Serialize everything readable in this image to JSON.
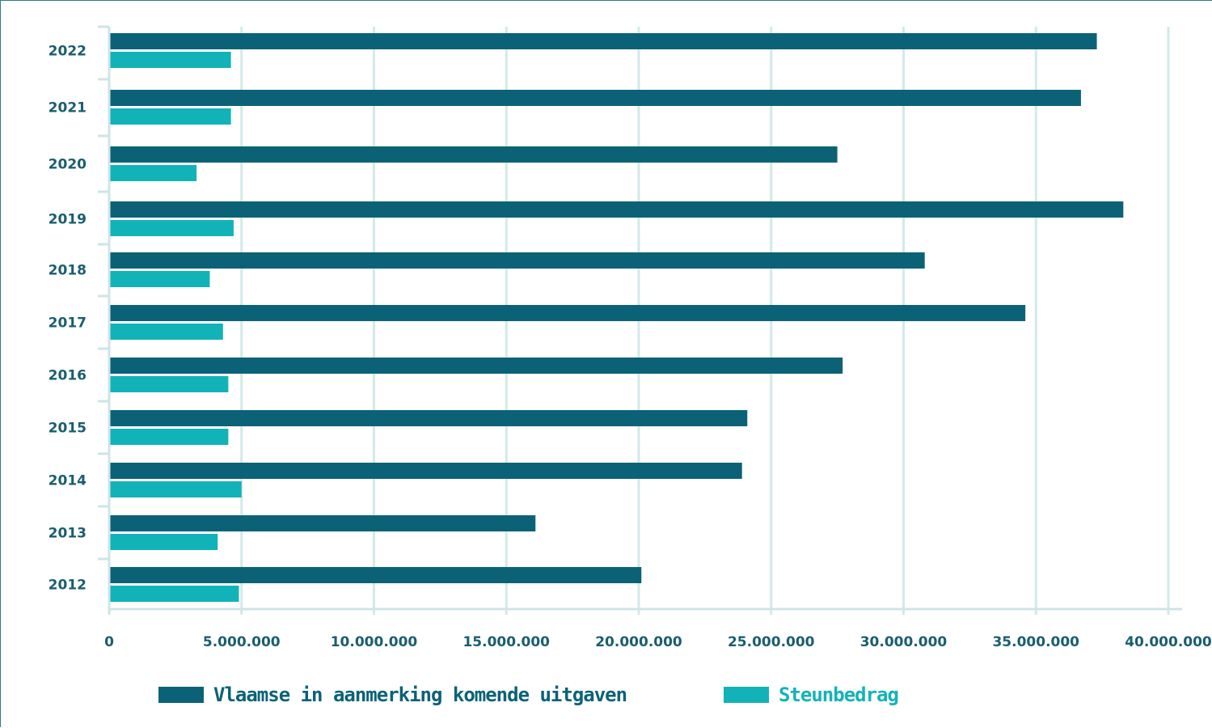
{
  "chart_data": {
    "type": "bar",
    "orientation": "horizontal",
    "categories": [
      "2022",
      "2021",
      "2020",
      "2019",
      "2018",
      "2017",
      "2016",
      "2015",
      "2014",
      "2013",
      "2012"
    ],
    "series": [
      {
        "name": "Vlaamse in aanmerking komende uitgaven",
        "color": "#0b6277",
        "values": [
          37300000,
          36700000,
          27500000,
          38300000,
          30800000,
          34600000,
          27700000,
          24100000,
          23900000,
          16100000,
          20100000
        ]
      },
      {
        "name": "Steunbedrag",
        "color": "#12b3b8",
        "values": [
          4600000,
          4600000,
          3300000,
          4700000,
          3800000,
          4300000,
          4500000,
          4500000,
          5000000,
          4100000,
          4900000
        ]
      }
    ],
    "xlim": [
      0,
      40000000
    ],
    "x_ticks": [
      0,
      5000000,
      10000000,
      15000000,
      20000000,
      25000000,
      30000000,
      35000000,
      40000000
    ],
    "x_tick_labels": [
      "0",
      "5.000.000",
      "10.000.000",
      "15.000.000",
      "20.000.000",
      "25.000.000",
      "30.000.000",
      "35.000.000",
      "40.000.000"
    ],
    "grid": "vertical",
    "legend_position": "bottom",
    "title": "",
    "xlabel": "",
    "ylabel": ""
  },
  "legend": {
    "series_a_label": "Vlaamse in aanmerking komende uitgaven",
    "series_b_label": "Steunbedrag"
  },
  "colors": {
    "grid": "#d3e9ea",
    "axis": "#cfe4e6",
    "tick_text": "#1a5e6e"
  }
}
